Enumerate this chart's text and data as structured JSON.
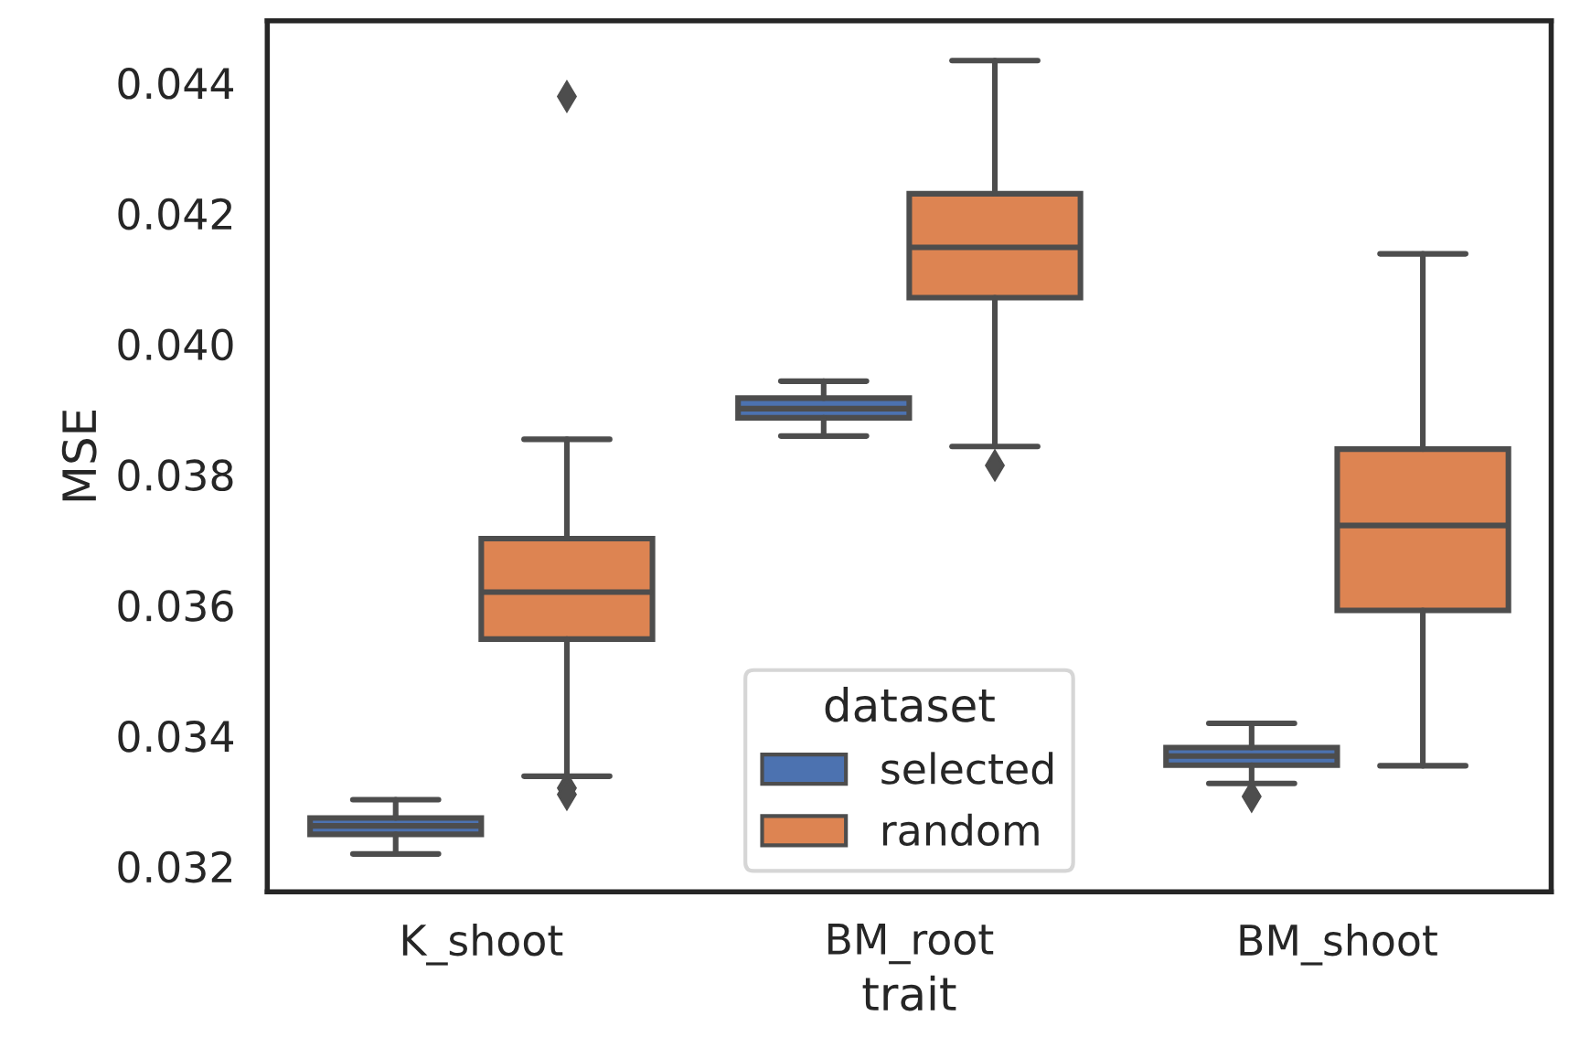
{
  "chart_data": {
    "type": "box",
    "xlabel": "trait",
    "ylabel": "MSE",
    "legend_title": "dataset",
    "legend": "bottom",
    "grid": false,
    "marker": "diamond",
    "categories": [
      "K_shoot",
      "BM_root",
      "BM_shoot"
    ],
    "ylim": [
      0.03161,
      0.04495
    ],
    "yticks": [
      0.032,
      0.034,
      0.036,
      0.038,
      {
        "value": 0.04,
        "label": "0.040"
      },
      0.042,
      0.044
    ],
    "series": [
      {
        "name": "selected",
        "color": "#4c72b0",
        "boxes": [
          {
            "low": 0.03219,
            "q1": 0.03249,
            "median": 0.03262,
            "q3": 0.03274,
            "high": 0.03302
          },
          {
            "low": 0.03859,
            "q1": 0.03887,
            "median": 0.03901,
            "q3": 0.03917,
            "high": 0.03943
          },
          {
            "low": 0.03327,
            "q1": 0.03355,
            "median": 0.03369,
            "q3": 0.03382,
            "high": 0.03419,
            "outliers": [
              0.03307
            ]
          }
        ]
      },
      {
        "name": "random",
        "color": "#dd8452",
        "boxes": [
          {
            "low": 0.03338,
            "q1": 0.03548,
            "median": 0.0362,
            "q3": 0.03702,
            "high": 0.03854,
            "outliers": [
              0.04379,
              0.0332,
              0.0331
            ]
          },
          {
            "low": 0.03843,
            "q1": 0.04071,
            "median": 0.04148,
            "q3": 0.0423,
            "high": 0.04434,
            "outliers": [
              0.03814
            ]
          },
          {
            "low": 0.03354,
            "q1": 0.03592,
            "median": 0.03722,
            "q3": 0.03839,
            "high": 0.04138
          }
        ]
      }
    ]
  }
}
